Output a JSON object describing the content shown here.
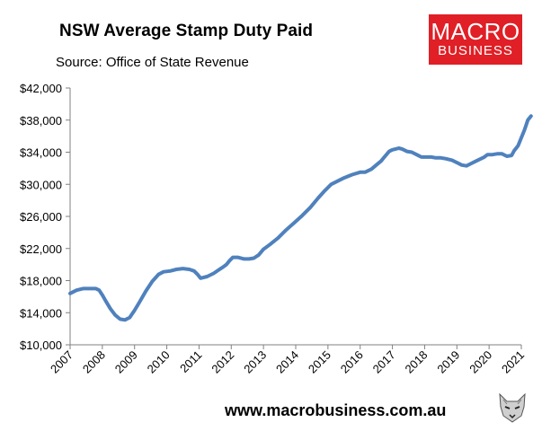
{
  "header": {
    "title": "NSW Average Stamp Duty Paid",
    "subtitle": "Source: Office of State Revenue"
  },
  "logo": {
    "line1": "MACRO",
    "line2": "BUSINESS",
    "color": "#e01f26"
  },
  "footer": {
    "url": "www.macrobusiness.com.au"
  },
  "icons": {
    "mascot": "wolf-mascot-icon"
  },
  "chart_data": {
    "type": "line",
    "title": "NSW Average Stamp Duty Paid",
    "subtitle": "Source: Office of State Revenue",
    "xlabel": "",
    "ylabel": "",
    "xlim": [
      2007,
      2021
    ],
    "ylim": [
      10000,
      42000
    ],
    "yticks": [
      10000,
      14000,
      18000,
      22000,
      26000,
      30000,
      34000,
      38000,
      42000
    ],
    "ytick_labels": [
      "$10,000",
      "$14,000",
      "$18,000",
      "$22,000",
      "$26,000",
      "$30,000",
      "$34,000",
      "$38,000",
      "$42,000"
    ],
    "xticks": [
      2007,
      2008,
      2009,
      2010,
      2011,
      2012,
      2013,
      2014,
      2015,
      2016,
      2017,
      2018,
      2019,
      2020,
      2021
    ],
    "xtick_labels": [
      "2007",
      "2008",
      "2009",
      "2010",
      "2011",
      "2012",
      "2013",
      "2014",
      "2015",
      "2016",
      "2017",
      "2018",
      "2019",
      "2020",
      "2021"
    ],
    "grid": false,
    "line_color": "#4f81bd",
    "series": [
      {
        "x": [
          2007.0,
          2007.2,
          2007.4,
          2007.6,
          2007.8,
          2007.9,
          2008.0,
          2008.1,
          2008.25,
          2008.4,
          2008.55,
          2008.7,
          2008.85,
          2009.0,
          2009.15,
          2009.35,
          2009.55,
          2009.75,
          2009.9,
          2010.1,
          2010.3,
          2010.5,
          2010.7,
          2010.85,
          2010.95,
          2011.05,
          2011.25,
          2011.45,
          2011.6,
          2011.75,
          2011.85,
          2011.95,
          2012.05,
          2012.2,
          2012.4,
          2012.55,
          2012.7,
          2012.85,
          2013.0,
          2013.2,
          2013.45,
          2013.7,
          2013.95,
          2014.2,
          2014.45,
          2014.7,
          2014.9,
          2015.1,
          2015.3,
          2015.5,
          2015.75,
          2016.0,
          2016.15,
          2016.35,
          2016.5,
          2016.65,
          2016.75,
          2016.9,
          2017.0,
          2017.1,
          2017.2,
          2017.3,
          2017.45,
          2017.6,
          2017.75,
          2017.9,
          2018.05,
          2018.2,
          2018.35,
          2018.5,
          2018.65,
          2018.85,
          2019.0,
          2019.15,
          2019.3,
          2019.45,
          2019.55,
          2019.65,
          2019.75,
          2019.85,
          2019.95,
          2020.1,
          2020.25,
          2020.4,
          2020.55,
          2020.7,
          2020.78
        ],
        "y": [
          16400,
          16800,
          17000,
          17000,
          17000,
          16800,
          16200,
          15500,
          14500,
          13700,
          13200,
          13100,
          13400,
          14300,
          15300,
          16700,
          17900,
          18800,
          19100,
          19200,
          19400,
          19500,
          19400,
          19200,
          18800,
          18300,
          18500,
          18900,
          19300,
          19700,
          20000,
          20500,
          20900,
          20900,
          20700,
          20700,
          20800,
          21200,
          21900,
          22500,
          23300,
          24300,
          25200,
          26100,
          27100,
          28300,
          29200,
          30000,
          30400,
          30800,
          31200,
          31500,
          31500,
          31900,
          32400,
          32900,
          33400,
          34100,
          34300,
          34400,
          34500,
          34400,
          34100,
          34000,
          33700,
          33400,
          33400,
          33400,
          33300,
          33300,
          33200,
          33000,
          32700,
          32400,
          32300,
          32600,
          32800,
          33000,
          33200,
          33400,
          33700,
          33700,
          33800,
          33800,
          33500,
          33600,
          34200
        ]
      }
    ],
    "series_tail": {
      "x": [
        2020.78,
        2020.9,
        2021.0,
        2021.1,
        2021.2,
        2021.3
      ],
      "y": [
        34200,
        34800,
        35800,
        36800,
        38000,
        38500
      ]
    }
  }
}
